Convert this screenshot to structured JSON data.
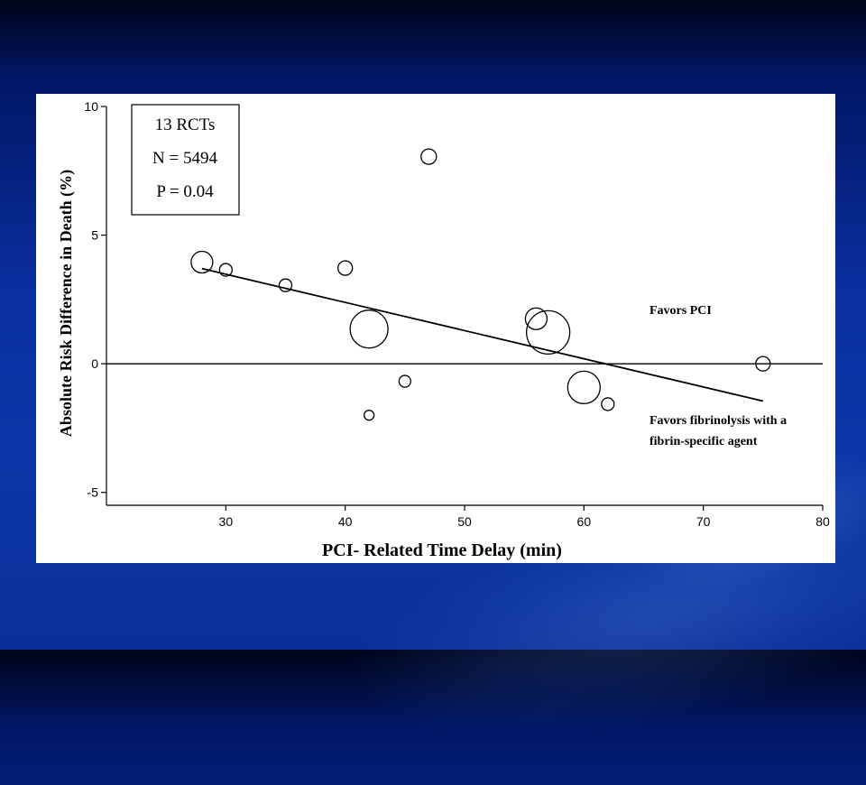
{
  "chart_data": {
    "type": "scatter",
    "xlabel": "PCI- Related Time Delay (min)",
    "ylabel": "Absolute Risk Difference in Death (%)",
    "xlim": [
      20,
      80
    ],
    "ylim": [
      -5.5,
      10
    ],
    "x_ticks": [
      "30",
      "40",
      "50",
      "60",
      "70",
      "80"
    ],
    "y_ticks": [
      "10",
      "5",
      "0",
      "-5"
    ],
    "x_tick_values": [
      30,
      40,
      50,
      60,
      70,
      80
    ],
    "y_tick_values": [
      10,
      5,
      0,
      -5
    ],
    "reference_line_y": 0,
    "regression_line": {
      "x": [
        28,
        75
      ],
      "y": [
        3.7,
        -1.45
      ]
    },
    "points": [
      {
        "x": 28,
        "y": 3.95,
        "size": 12
      },
      {
        "x": 30,
        "y": 3.65,
        "size": 7
      },
      {
        "x": 35,
        "y": 3.05,
        "size": 7
      },
      {
        "x": 40,
        "y": 3.72,
        "size": 8
      },
      {
        "x": 42,
        "y": 1.35,
        "size": 21
      },
      {
        "x": 42,
        "y": -2.0,
        "size": 5.5
      },
      {
        "x": 45,
        "y": -0.68,
        "size": 6.5
      },
      {
        "x": 47,
        "y": 8.05,
        "size": 8.5
      },
      {
        "x": 56,
        "y": 1.75,
        "size": 12
      },
      {
        "x": 57,
        "y": 1.22,
        "size": 24
      },
      {
        "x": 60,
        "y": -0.92,
        "size": 18
      },
      {
        "x": 62,
        "y": -1.57,
        "size": 7
      },
      {
        "x": 75,
        "y": 0.0,
        "size": 8
      }
    ],
    "stats_box": [
      "13 RCTs",
      "N = 5494",
      "P = 0.04"
    ],
    "annotations": {
      "favors_pci": "Favors PCI",
      "favors_fibrinolysis_line1": "Favors fibrinolysis with a",
      "favors_fibrinolysis_line2": "fibrin-specific agent"
    },
    "grid": false
  }
}
